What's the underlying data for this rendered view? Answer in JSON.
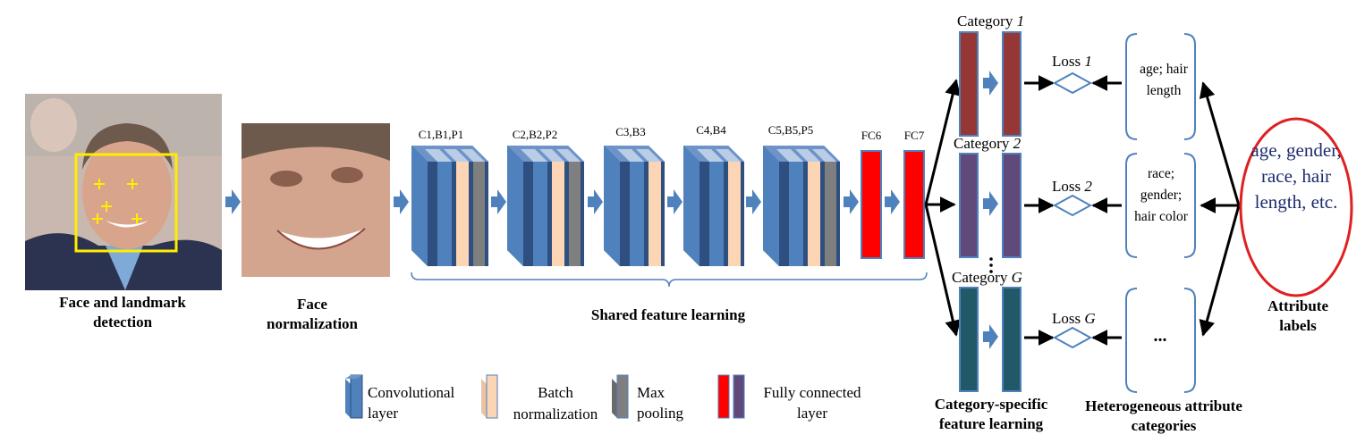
{
  "steps": {
    "detection": "Face and landmark detection",
    "normalization": "Face normalization",
    "shared": "Shared feature learning",
    "category_specific": "Category-specific feature learning",
    "heterogeneous": "Heterogeneous attribute categories",
    "attribute_labels_caption": "Attribute labels"
  },
  "blocks": [
    "C1,B1,P1",
    "C2,B2,P2",
    "C3,B3",
    "C4,B4",
    "C5,B5,P5"
  ],
  "fc": [
    "FC6",
    "FC7"
  ],
  "categories": [
    {
      "prefix": "Category",
      "index": "1",
      "loss_prefix": "Loss",
      "loss_index": "1",
      "attributes": "age; hair length"
    },
    {
      "prefix": "Category",
      "index": "2",
      "loss_prefix": "Loss",
      "loss_index": "2",
      "attributes": "race; gender; hair color"
    },
    {
      "prefix": "Category",
      "index": "G",
      "loss_prefix": "Loss",
      "loss_index": "G",
      "attributes": "..."
    }
  ],
  "attribute_labels": "age, gender, race, hair length, etc.",
  "legend": {
    "conv": "Convolutional layer",
    "bn": "Batch normalization",
    "pool": "Max pooling",
    "fc": "Fully connected layer"
  },
  "colors": {
    "conv_face": "#4f81bd",
    "conv_dark": "#2f4f80",
    "bn": "#fcd5b5",
    "pool": "#7f7f7f",
    "fc_red": "#ff0000",
    "cat1": "#953735",
    "cat2": "#604a7b",
    "catG": "#215968",
    "bracket": "#4f81bd",
    "ellipse": "#e02020"
  }
}
